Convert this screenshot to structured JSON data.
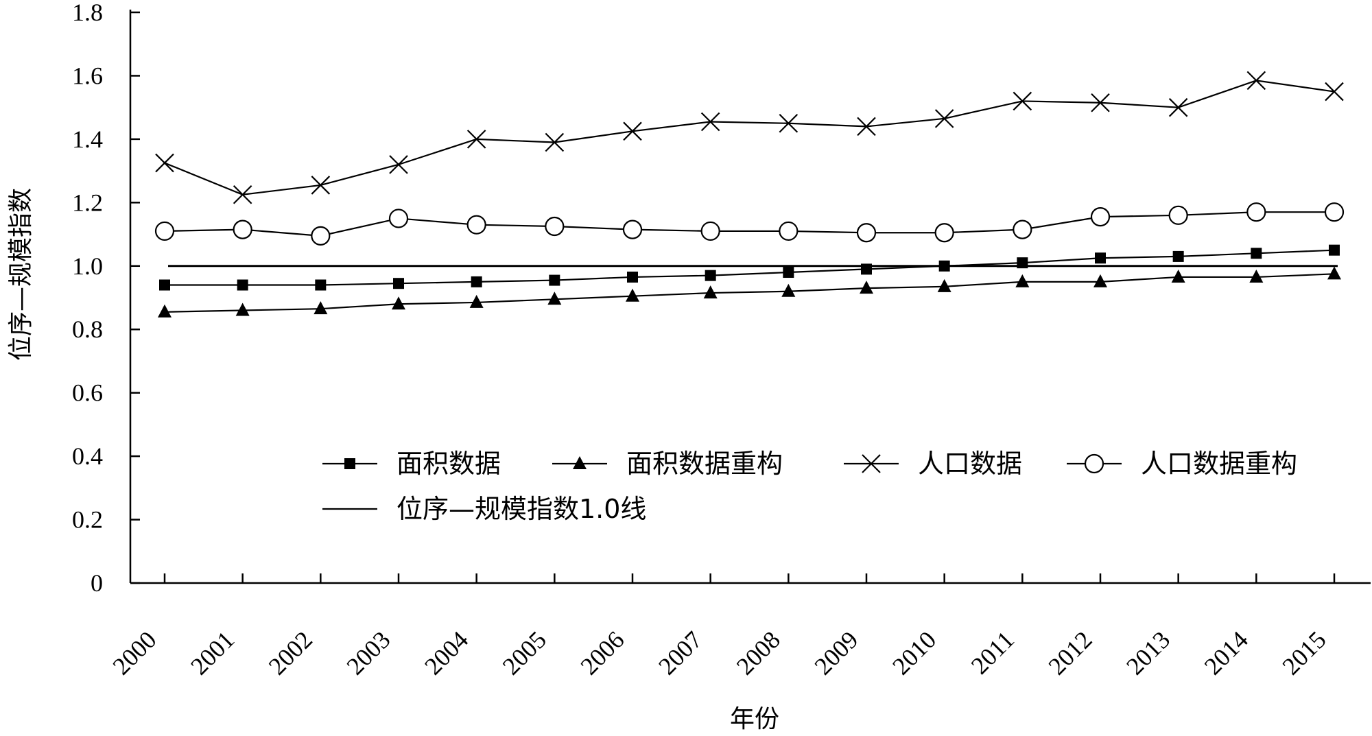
{
  "chart_data": {
    "type": "line",
    "title": "",
    "xlabel": "年份",
    "ylabel": "位序—规模指数",
    "ylim": [
      0,
      1.8
    ],
    "yticks": [
      "0",
      "0.2",
      "0.4",
      "0.6",
      "0.8",
      "1.0",
      "1.2",
      "1.4",
      "1.6",
      "1.8"
    ],
    "categories": [
      "2000",
      "2001",
      "2002",
      "2003",
      "2004",
      "2005",
      "2006",
      "2007",
      "2008",
      "2009",
      "2010",
      "2011",
      "2012",
      "2013",
      "2014",
      "2015"
    ],
    "legend_position": "lower-middle",
    "grid": false,
    "series": [
      {
        "name": "面积数据",
        "marker": "square",
        "values": [
          0.94,
          0.94,
          0.94,
          0.945,
          0.95,
          0.955,
          0.965,
          0.97,
          0.98,
          0.99,
          1.0,
          1.01,
          1.025,
          1.03,
          1.04,
          1.05
        ]
      },
      {
        "name": "面积数据重构",
        "marker": "triangle",
        "values": [
          0.855,
          0.86,
          0.865,
          0.88,
          0.885,
          0.895,
          0.905,
          0.915,
          0.92,
          0.93,
          0.935,
          0.95,
          0.95,
          0.965,
          0.965,
          0.975
        ]
      },
      {
        "name": "人口数据",
        "marker": "x",
        "values": [
          1.325,
          1.225,
          1.255,
          1.32,
          1.4,
          1.39,
          1.425,
          1.455,
          1.45,
          1.44,
          1.465,
          1.52,
          1.515,
          1.5,
          1.585,
          1.55
        ]
      },
      {
        "name": "人口数据重构",
        "marker": "circle",
        "values": [
          1.11,
          1.115,
          1.095,
          1.15,
          1.13,
          1.125,
          1.115,
          1.11,
          1.11,
          1.105,
          1.105,
          1.115,
          1.155,
          1.16,
          1.17,
          1.17
        ]
      }
    ],
    "reference_line": {
      "name": "位序—规模指数1.0线",
      "value": 1.0
    }
  }
}
